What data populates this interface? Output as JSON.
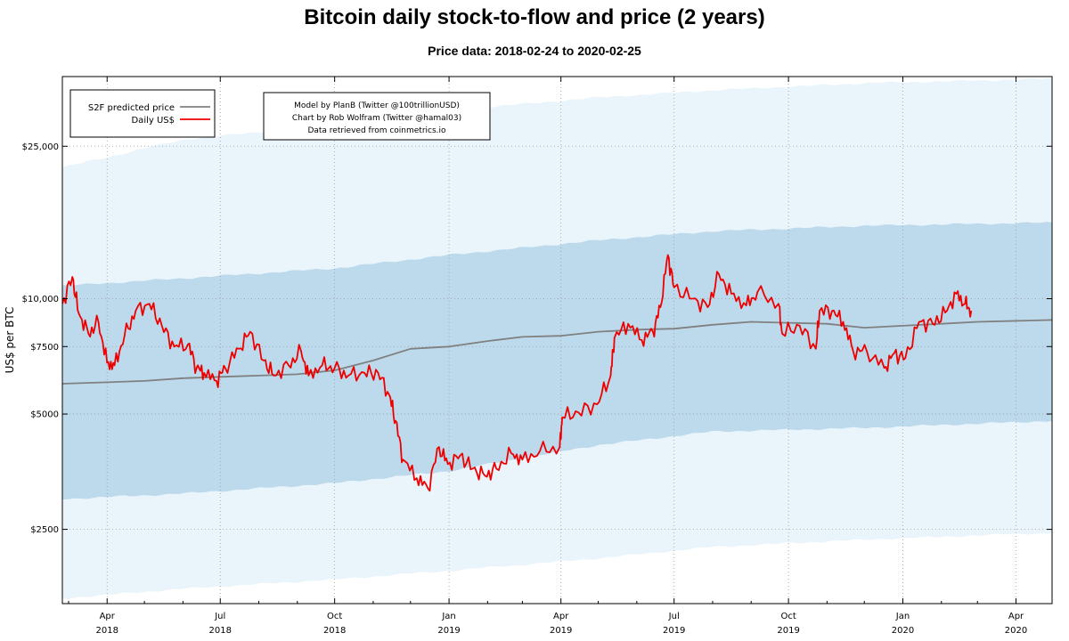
{
  "chart_data": {
    "type": "line",
    "title": "Bitcoin daily stock-to-flow and price (2 years)",
    "subtitle": "Price data: 2018-02-24 to 2020-02-25",
    "ylabel": "US$ per BTC",
    "xlabel": "",
    "yscale": "log",
    "ylim": [
      1600,
      38000
    ],
    "xlim": [
      "2018-02-24",
      "2020-04-30"
    ],
    "yticks": [
      {
        "value": 2500,
        "label": "$2500"
      },
      {
        "value": 5000,
        "label": "$5000"
      },
      {
        "value": 7500,
        "label": "$7500"
      },
      {
        "value": 10000,
        "label": "$10,000"
      },
      {
        "value": 25000,
        "label": "$25,000"
      }
    ],
    "xticks": [
      {
        "date": "2018-04-01",
        "month": "Apr",
        "year": "2018"
      },
      {
        "date": "2018-07-01",
        "month": "Jul",
        "year": "2018"
      },
      {
        "date": "2018-10-01",
        "month": "Oct",
        "year": "2018"
      },
      {
        "date": "2019-01-01",
        "month": "Jan",
        "year": "2019"
      },
      {
        "date": "2019-04-01",
        "month": "Apr",
        "year": "2019"
      },
      {
        "date": "2019-07-01",
        "month": "Jul",
        "year": "2019"
      },
      {
        "date": "2019-10-01",
        "month": "Oct",
        "year": "2019"
      },
      {
        "date": "2020-01-01",
        "month": "Jan",
        "year": "2020"
      },
      {
        "date": "2020-04-01",
        "month": "Apr",
        "year": "2020"
      }
    ],
    "legend": {
      "position": "top-left",
      "entries": [
        {
          "label": "S2F predicted price",
          "color": "#808080"
        },
        {
          "label": "Daily US$",
          "color": "#ee0000"
        }
      ]
    },
    "annotation": {
      "position": "top-center",
      "lines": [
        "Model by PlanB (Twitter @100trillionUSD)",
        "Chart by Rob Wolfram (Twitter @hamal03)",
        "Data retrieved from coinmetrics.io"
      ]
    },
    "bands": [
      {
        "name": "outer band",
        "color": "#e9f4fb",
        "upper": {
          "x": [
            "2018-02-24",
            "2018-06-01",
            "2018-10-01",
            "2019-01-01",
            "2019-05-01",
            "2019-08-01",
            "2019-12-01",
            "2020-04-30"
          ],
          "y": [
            22000,
            26000,
            28500,
            31000,
            33500,
            35000,
            36500,
            37500
          ]
        },
        "lower": {
          "x": [
            "2018-02-24",
            "2018-06-01",
            "2018-10-01",
            "2019-01-01",
            "2019-05-01",
            "2019-08-01",
            "2019-12-01",
            "2020-04-30"
          ],
          "y": [
            1650,
            1750,
            1850,
            1950,
            2100,
            2250,
            2350,
            2450
          ]
        }
      },
      {
        "name": "inner band",
        "color": "#bcdaec",
        "upper": {
          "x": [
            "2018-02-24",
            "2018-06-01",
            "2018-10-01",
            "2019-01-01",
            "2019-05-01",
            "2019-08-01",
            "2019-12-01",
            "2020-04-30"
          ],
          "y": [
            10800,
            11300,
            12000,
            13000,
            14200,
            15000,
            15500,
            15800
          ]
        },
        "lower": {
          "x": [
            "2018-02-24",
            "2018-06-01",
            "2018-10-01",
            "2019-01-01",
            "2019-05-01",
            "2019-08-01",
            "2019-12-01",
            "2020-04-30"
          ],
          "y": [
            3000,
            3100,
            3300,
            3550,
            4150,
            4500,
            4600,
            4800
          ]
        }
      }
    ],
    "series": [
      {
        "name": "S2F predicted price",
        "color": "#808080",
        "x": [
          "2018-02-24",
          "2018-04-01",
          "2018-05-01",
          "2018-06-01",
          "2018-07-01",
          "2018-08-01",
          "2018-09-01",
          "2018-10-01",
          "2018-11-01",
          "2018-12-01",
          "2019-01-01",
          "2019-02-01",
          "2019-03-01",
          "2019-04-01",
          "2019-05-01",
          "2019-06-01",
          "2019-07-01",
          "2019-08-01",
          "2019-09-01",
          "2019-10-01",
          "2019-11-01",
          "2019-12-01",
          "2020-01-01",
          "2020-02-01",
          "2020-03-01",
          "2020-04-30"
        ],
        "y": [
          6000,
          6050,
          6100,
          6200,
          6250,
          6300,
          6350,
          6500,
          6900,
          7400,
          7500,
          7750,
          7950,
          8000,
          8200,
          8300,
          8350,
          8550,
          8700,
          8650,
          8600,
          8400,
          8500,
          8600,
          8700,
          8800
        ]
      },
      {
        "name": "Daily US$",
        "color": "#ee0000",
        "x": [
          "2018-02-24",
          "2018-03-04",
          "2018-03-09",
          "2018-03-17",
          "2018-03-25",
          "2018-04-01",
          "2018-04-07",
          "2018-04-15",
          "2018-04-24",
          "2018-05-05",
          "2018-05-15",
          "2018-05-25",
          "2018-06-05",
          "2018-06-12",
          "2018-06-18",
          "2018-06-28",
          "2018-07-05",
          "2018-07-16",
          "2018-07-25",
          "2018-08-05",
          "2018-08-13",
          "2018-08-25",
          "2018-09-04",
          "2018-09-10",
          "2018-09-21",
          "2018-10-01",
          "2018-10-12",
          "2018-10-25",
          "2018-11-05",
          "2018-11-14",
          "2018-11-19",
          "2018-11-25",
          "2018-12-06",
          "2018-12-15",
          "2018-12-24",
          "2018-12-31",
          "2019-01-10",
          "2019-01-20",
          "2019-01-30",
          "2019-02-08",
          "2019-02-20",
          "2019-03-01",
          "2019-03-15",
          "2019-03-31",
          "2019-04-02",
          "2019-04-15",
          "2019-04-30",
          "2019-05-11",
          "2019-05-14",
          "2019-05-25",
          "2019-06-05",
          "2019-06-14",
          "2019-06-20",
          "2019-06-26",
          "2019-07-01",
          "2019-07-16",
          "2019-07-28",
          "2019-08-06",
          "2019-08-16",
          "2019-08-28",
          "2019-09-06",
          "2019-09-23",
          "2019-09-26",
          "2019-10-10",
          "2019-10-23",
          "2019-10-26",
          "2019-11-05",
          "2019-11-14",
          "2019-11-22",
          "2019-12-03",
          "2019-12-17",
          "2019-12-25",
          "2020-01-03",
          "2020-01-14",
          "2020-01-25",
          "2020-02-04",
          "2020-02-13",
          "2020-02-20",
          "2020-02-25"
        ],
        "y": [
          9700,
          11400,
          9200,
          8100,
          8700,
          6800,
          6700,
          8000,
          9300,
          9700,
          8500,
          7500,
          7600,
          6600,
          6400,
          6100,
          6600,
          7400,
          8200,
          6900,
          6300,
          6700,
          7300,
          6300,
          6700,
          6600,
          6300,
          6400,
          6400,
          5600,
          4800,
          3800,
          3400,
          3200,
          4100,
          3700,
          3900,
          3600,
          3450,
          3600,
          3950,
          3800,
          4000,
          4100,
          4900,
          5050,
          5300,
          6300,
          7900,
          8600,
          7800,
          8200,
          9500,
          13000,
          10700,
          10000,
          9500,
          11600,
          10300,
          9600,
          10400,
          9700,
          8100,
          8500,
          7400,
          9300,
          9300,
          8700,
          7300,
          7300,
          6600,
          7200,
          7000,
          8700,
          8600,
          9200,
          10300,
          9700,
          9300
        ]
      }
    ]
  }
}
